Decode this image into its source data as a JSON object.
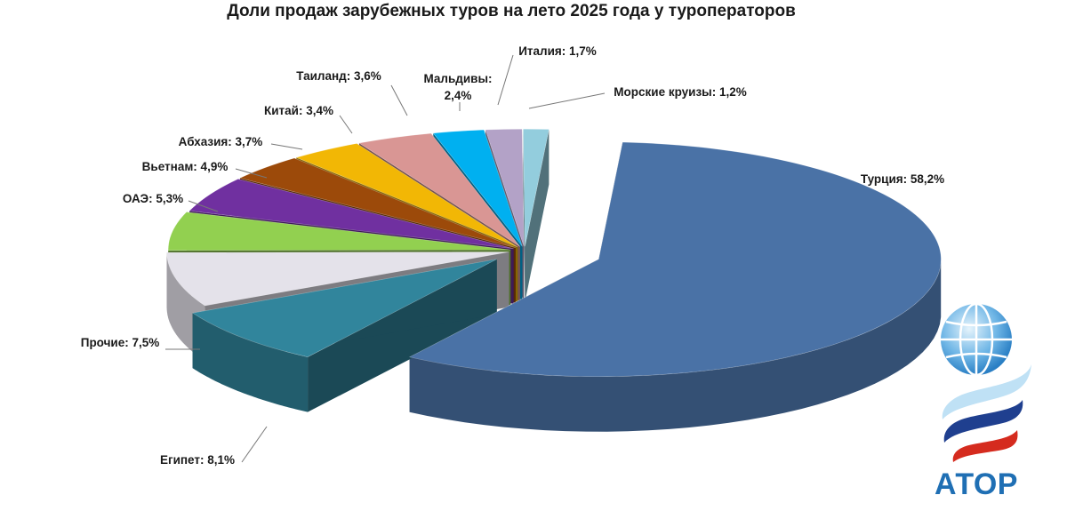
{
  "chart_data": {
    "type": "pie",
    "title": "Доли продаж зарубежных туров на лето 2025 года у туроператоров",
    "slices": [
      {
        "name": "Турция",
        "value": 58.2,
        "label": "Турция: 58,2%",
        "color": "#4a72a6"
      },
      {
        "name": "Египет",
        "value": 8.1,
        "label": "Египет: 8,1%",
        "color": "#31859c"
      },
      {
        "name": "Прочие",
        "value": 7.5,
        "label": "Прочие: 7,5%",
        "color": "#e4e2ea"
      },
      {
        "name": "ОАЭ",
        "value": 5.3,
        "label": "ОАЭ: 5,3%",
        "color": "#92d050"
      },
      {
        "name": "Вьетнам",
        "value": 4.9,
        "label": "Вьетнам: 4,9%",
        "color": "#7030a0"
      },
      {
        "name": "Абхазия",
        "value": 3.7,
        "label": "Абхазия: 3,7%",
        "color": "#9c4a0a"
      },
      {
        "name": "Китай",
        "value": 3.4,
        "label": "Китай: 3,4%",
        "color": "#f2b705"
      },
      {
        "name": "Таиланд",
        "value": 3.6,
        "label": "Таиланд: 3,6%",
        "color": "#d99694"
      },
      {
        "name": "Мальдивы",
        "value": 2.4,
        "label": "Мальдивы:\n2,4%",
        "color": "#00b0f0"
      },
      {
        "name": "Италия",
        "value": 1.7,
        "label": "Италия: 1,7%",
        "color": "#b3a2c7"
      },
      {
        "name": "Морские круизы",
        "value": 1.2,
        "label": "Морские круизы: 1,2%",
        "color": "#93cddd"
      }
    ]
  },
  "logo": {
    "text": "АТОР"
  }
}
